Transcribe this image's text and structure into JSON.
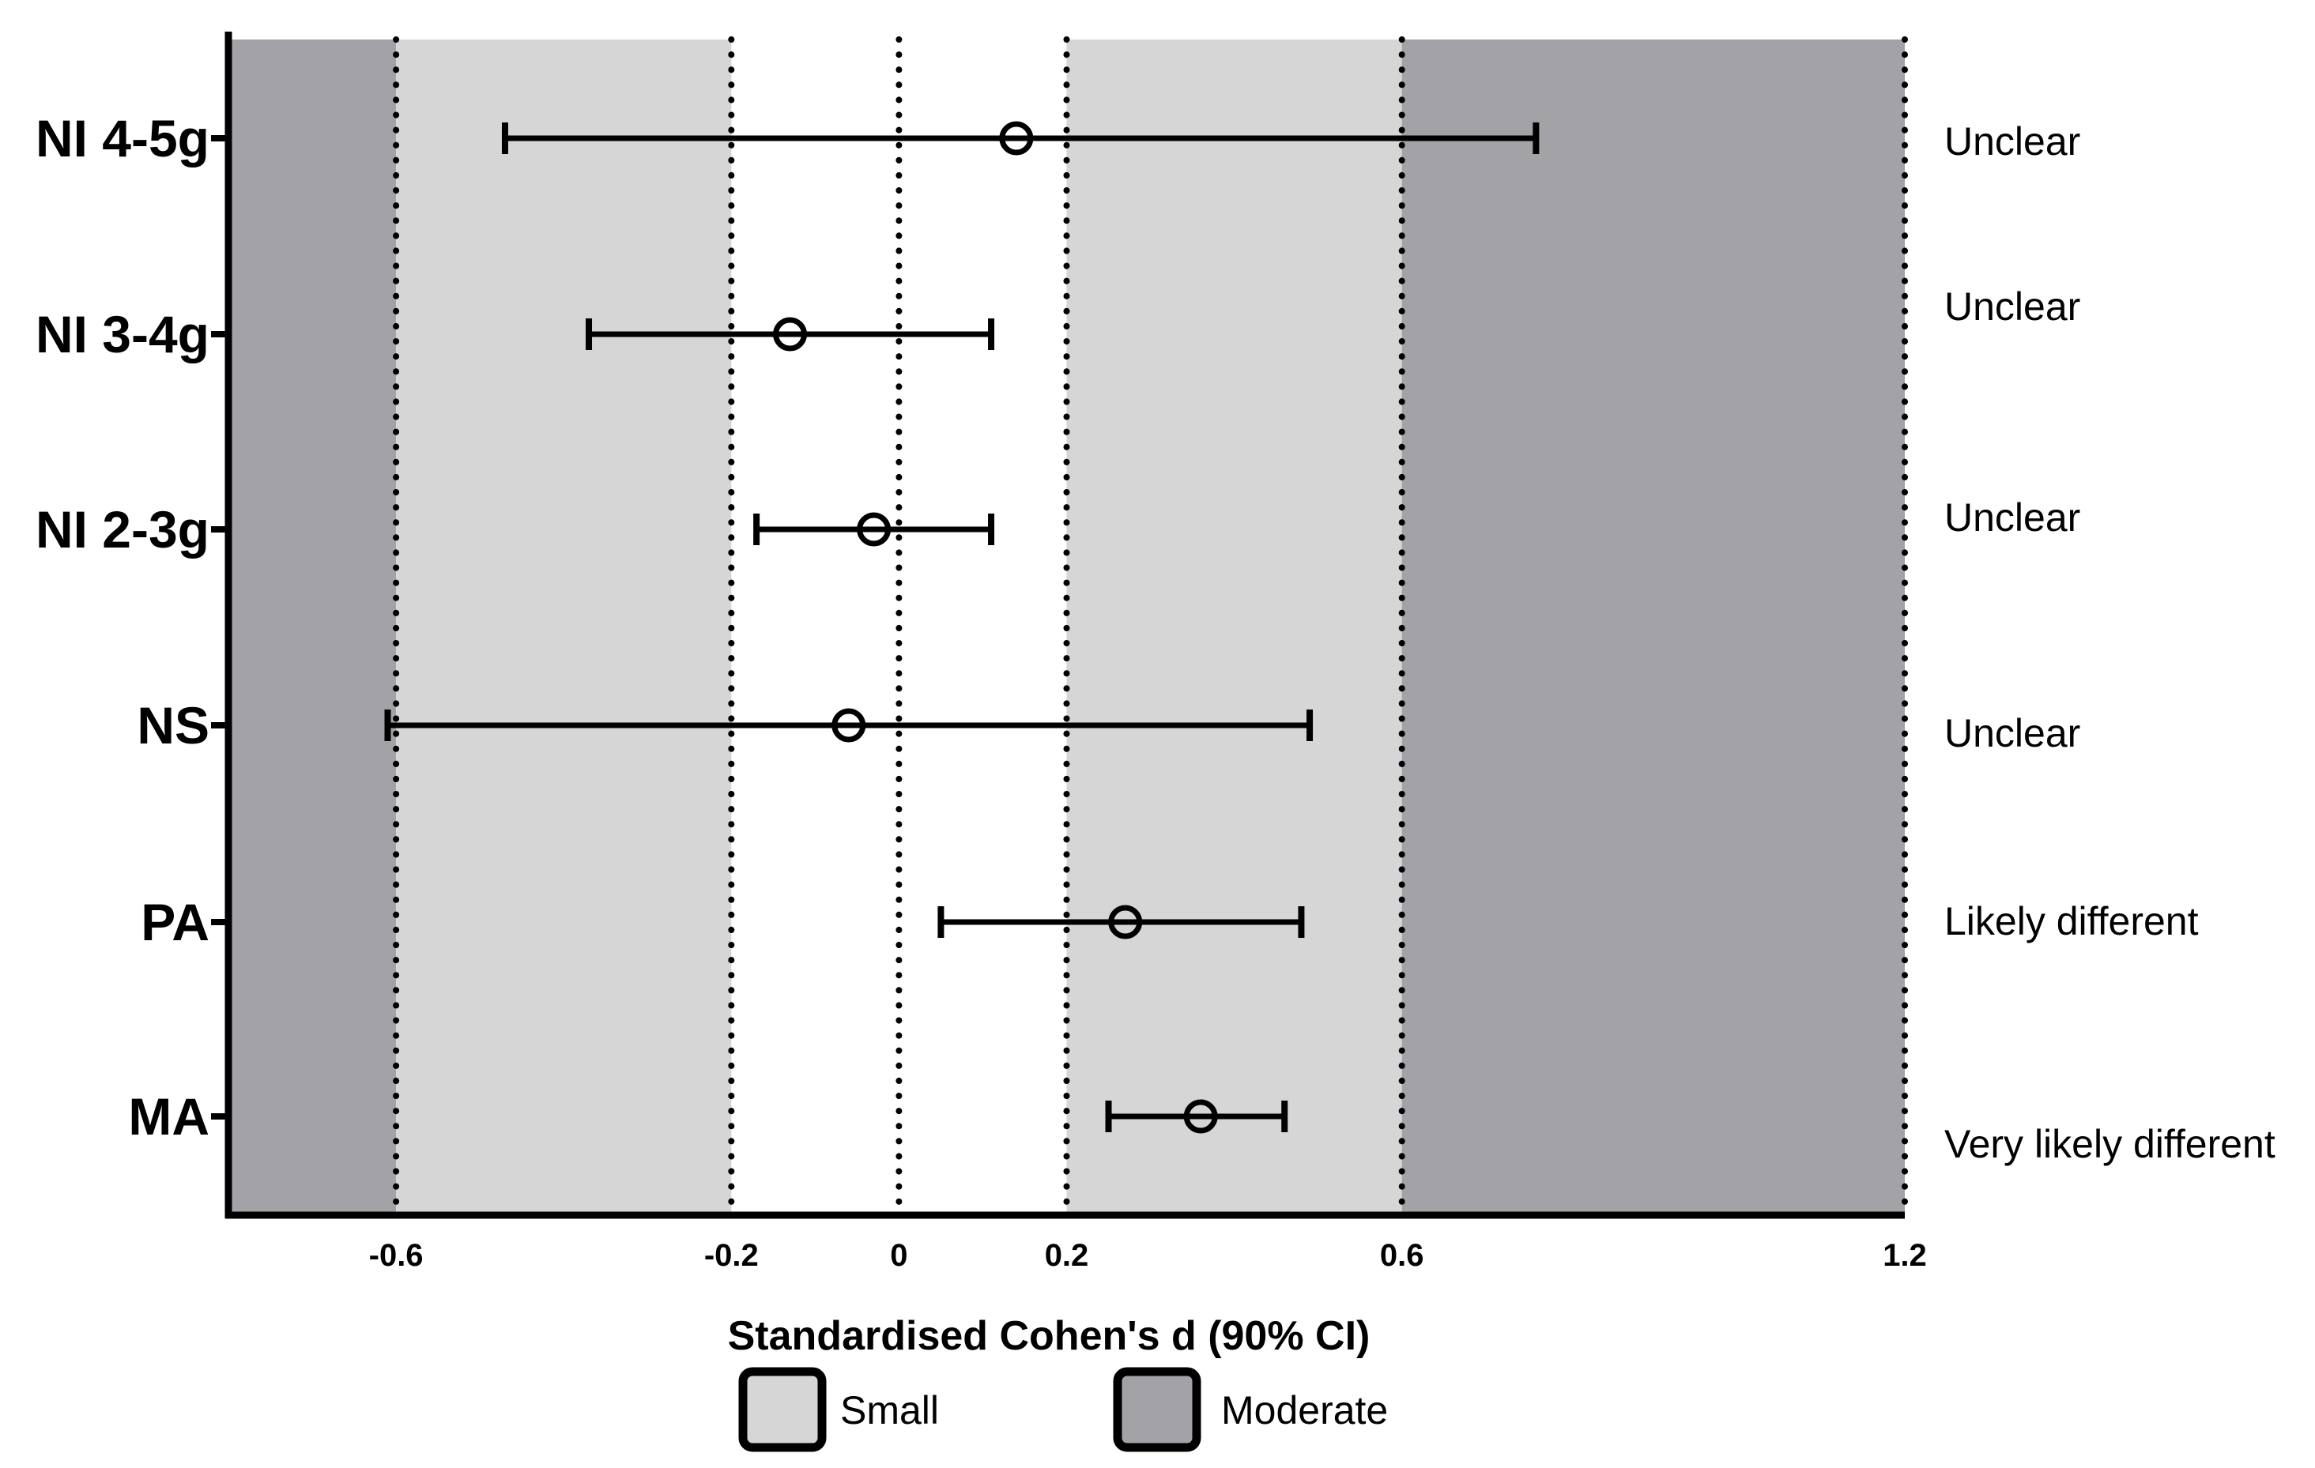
{
  "chart_data": {
    "type": "forest",
    "xlabel": "Standardised Cohen's d (90% CI)",
    "xlim": [
      -0.8,
      1.2
    ],
    "xticks": [
      -0.6,
      -0.2,
      0,
      0.2,
      0.6,
      1.2
    ],
    "xtick_labels": [
      "-0.6",
      "-0.2",
      "0",
      "0.2",
      "0.6",
      "1.2"
    ],
    "reference_lines": [
      -0.6,
      -0.2,
      0,
      0.2,
      0.6,
      1.2
    ],
    "bands": [
      {
        "from": -0.8,
        "to": -0.6,
        "category": "Moderate"
      },
      {
        "from": -0.6,
        "to": -0.2,
        "category": "Small"
      },
      {
        "from": 0.2,
        "to": 0.6,
        "category": "Small"
      },
      {
        "from": 0.6,
        "to": 1.2,
        "category": "Moderate"
      }
    ],
    "rows": [
      {
        "label": "NI 4-5g",
        "estimate": 0.14,
        "lower": -0.47,
        "upper": 0.76,
        "inference": "Unclear"
      },
      {
        "label": "NI 3-4g",
        "estimate": -0.13,
        "lower": -0.37,
        "upper": 0.11,
        "inference": "Unclear"
      },
      {
        "label": "NI 2-3g",
        "estimate": -0.03,
        "lower": -0.17,
        "upper": 0.11,
        "inference": "Unclear"
      },
      {
        "label": "NS",
        "estimate": -0.06,
        "lower": -0.61,
        "upper": 0.49,
        "inference": "Unclear"
      },
      {
        "label": "PA",
        "estimate": 0.27,
        "lower": 0.05,
        "upper": 0.48,
        "inference": "Likely different"
      },
      {
        "label": "MA",
        "estimate": 0.36,
        "lower": 0.25,
        "upper": 0.46,
        "inference": "Very likely different"
      }
    ],
    "legend": [
      {
        "label": "Small",
        "color": "#d6d6d6"
      },
      {
        "label": "Moderate",
        "color": "#a3a2a7"
      }
    ],
    "legend_position": "bottom"
  }
}
